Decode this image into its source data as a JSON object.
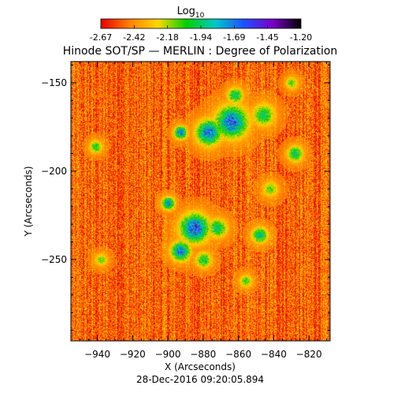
{
  "chart_data": {
    "type": "heatmap",
    "title": "Hinode SOT/SP — MERLIN : Degree of Polarization",
    "xlabel": "X (Arcseconds)",
    "ylabel": "Y (Arcseconds)",
    "timestamp": "28-Dec-2016 09:20:05.894",
    "xlim": [
      -955,
      -808
    ],
    "ylim": [
      -296,
      -138
    ],
    "x_ticks": [
      -940,
      -920,
      -900,
      -880,
      -860,
      -840,
      -820
    ],
    "y_ticks": [
      -150,
      -200,
      -250
    ],
    "colorbar": {
      "label_base": "Log",
      "label_sub": "10",
      "min": -2.67,
      "max": -1.2,
      "ticks": [
        "-2.67",
        "-2.42",
        "-2.18",
        "-1.94",
        "-1.69",
        "-1.45",
        "-1.20"
      ],
      "colors": [
        "#e60000",
        "#ff8000",
        "#ffd800",
        "#00d000",
        "#00c8c8",
        "#1e50ff",
        "#7a00c8",
        "#000000"
      ]
    },
    "background_level": -2.5,
    "active_regions": [
      {
        "x": -864,
        "y": -172,
        "r": 10,
        "peak": -1.55
      },
      {
        "x": -877,
        "y": -178,
        "r": 8,
        "peak": -1.6
      },
      {
        "x": -846,
        "y": -168,
        "r": 7,
        "peak": -1.9
      },
      {
        "x": -862,
        "y": -157,
        "r": 5,
        "peak": -1.85
      },
      {
        "x": -885,
        "y": -232,
        "r": 9,
        "peak": -1.5
      },
      {
        "x": -893,
        "y": -245,
        "r": 6,
        "peak": -1.6
      },
      {
        "x": -900,
        "y": -218,
        "r": 4,
        "peak": -1.65
      },
      {
        "x": -872,
        "y": -232,
        "r": 6,
        "peak": -1.85
      },
      {
        "x": -893,
        "y": -178,
        "r": 4,
        "peak": -1.6
      },
      {
        "x": -848,
        "y": -236,
        "r": 5,
        "peak": -1.8
      },
      {
        "x": -828,
        "y": -190,
        "r": 5,
        "peak": -1.85
      },
      {
        "x": -941,
        "y": -186,
        "r": 4,
        "peak": -1.95
      },
      {
        "x": -880,
        "y": -250,
        "r": 5,
        "peak": -1.9
      },
      {
        "x": -856,
        "y": -262,
        "r": 4,
        "peak": -2.0
      },
      {
        "x": -938,
        "y": -250,
        "r": 4,
        "peak": -2.05
      },
      {
        "x": -842,
        "y": -210,
        "r": 5,
        "peak": -2.05
      },
      {
        "x": -830,
        "y": -150,
        "r": 4,
        "peak": -2.05
      }
    ]
  }
}
